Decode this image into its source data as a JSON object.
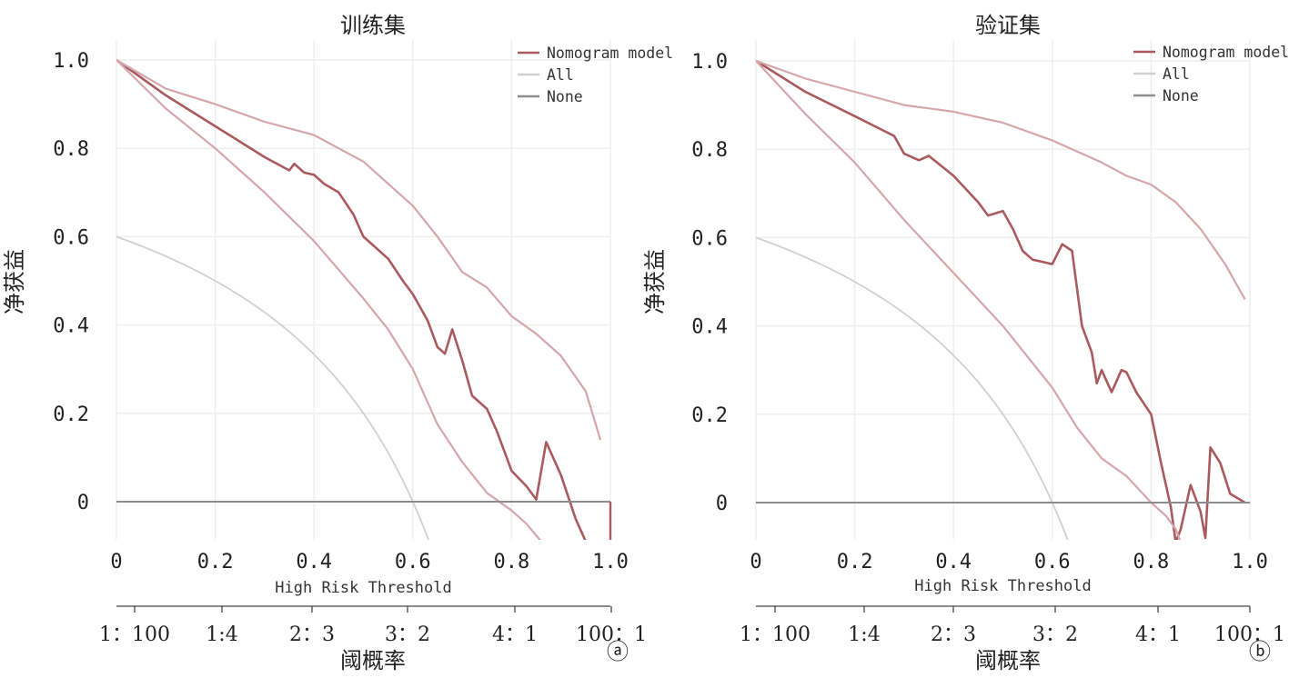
{
  "colors": {
    "model": "#a85a5e",
    "ci": "#d4a6aa",
    "all": "#d0d0d0",
    "none": "#8c8c8c"
  },
  "chart_data": [
    {
      "panel_id": "panel-a",
      "type": "line",
      "title": "训练集",
      "xlabel": "High Risk Threshold",
      "ylabel": "净获益",
      "xlim": [
        0,
        1
      ],
      "ylim": [
        -0.09,
        1.0
      ],
      "x_ticks": [
        "0",
        "0.2",
        "0.4",
        "0.6",
        "0.8",
        "1.0"
      ],
      "y_ticks": [
        "1.0",
        "0.8",
        "0.6",
        "0.4",
        "0.2",
        "0"
      ],
      "cost_benefit_label": "阈概率",
      "cost_benefit_ticks": [
        "1：100",
        "1:4",
        "2：3",
        "3：2",
        "4：1",
        "100：1"
      ],
      "panel_tag": "ⓐ",
      "legend": [
        "Nomogram model",
        "All",
        "None"
      ],
      "prevalence": 0.6,
      "series": [
        {
          "name": "Nomogram model",
          "role": "model",
          "points": [
            [
              0,
              1.0
            ],
            [
              0.05,
              0.96
            ],
            [
              0.1,
              0.92
            ],
            [
              0.15,
              0.885
            ],
            [
              0.2,
              0.85
            ],
            [
              0.25,
              0.815
            ],
            [
              0.3,
              0.78
            ],
            [
              0.35,
              0.75
            ],
            [
              0.36,
              0.765
            ],
            [
              0.38,
              0.745
            ],
            [
              0.4,
              0.74
            ],
            [
              0.42,
              0.72
            ],
            [
              0.45,
              0.7
            ],
            [
              0.48,
              0.65
            ],
            [
              0.5,
              0.6
            ],
            [
              0.55,
              0.55
            ],
            [
              0.58,
              0.5
            ],
            [
              0.6,
              0.47
            ],
            [
              0.63,
              0.41
            ],
            [
              0.65,
              0.35
            ],
            [
              0.665,
              0.335
            ],
            [
              0.68,
              0.39
            ],
            [
              0.7,
              0.32
            ],
            [
              0.72,
              0.24
            ],
            [
              0.75,
              0.21
            ],
            [
              0.77,
              0.16
            ],
            [
              0.8,
              0.07
            ],
            [
              0.83,
              0.035
            ],
            [
              0.85,
              0.005
            ],
            [
              0.87,
              0.135
            ],
            [
              0.9,
              0.06
            ],
            [
              0.93,
              -0.04
            ],
            [
              0.95,
              -0.09
            ]
          ]
        },
        {
          "name": "upper CI",
          "role": "ci",
          "points": [
            [
              0,
              1.0
            ],
            [
              0.1,
              0.935
            ],
            [
              0.2,
              0.9
            ],
            [
              0.3,
              0.86
            ],
            [
              0.4,
              0.83
            ],
            [
              0.5,
              0.77
            ],
            [
              0.6,
              0.67
            ],
            [
              0.65,
              0.6
            ],
            [
              0.7,
              0.52
            ],
            [
              0.75,
              0.485
            ],
            [
              0.8,
              0.42
            ],
            [
              0.85,
              0.38
            ],
            [
              0.9,
              0.33
            ],
            [
              0.95,
              0.25
            ],
            [
              0.98,
              0.14
            ]
          ]
        },
        {
          "name": "lower CI",
          "role": "ci",
          "points": [
            [
              0,
              1.0
            ],
            [
              0.1,
              0.89
            ],
            [
              0.2,
              0.8
            ],
            [
              0.3,
              0.7
            ],
            [
              0.4,
              0.59
            ],
            [
              0.5,
              0.46
            ],
            [
              0.55,
              0.39
            ],
            [
              0.6,
              0.3
            ],
            [
              0.65,
              0.175
            ],
            [
              0.7,
              0.09
            ],
            [
              0.75,
              0.02
            ],
            [
              0.8,
              -0.02
            ],
            [
              0.83,
              -0.05
            ],
            [
              0.86,
              -0.09
            ]
          ]
        },
        {
          "name": "All",
          "role": "all",
          "points": "formula"
        },
        {
          "name": "None",
          "role": "none",
          "points": [
            [
              0,
              0
            ],
            [
              1,
              0
            ]
          ]
        }
      ]
    },
    {
      "panel_id": "panel-b",
      "type": "line",
      "title": "验证集",
      "xlabel": "High Risk Threshold",
      "ylabel": "净获益",
      "xlim": [
        0,
        1
      ],
      "ylim": [
        -0.09,
        1.0
      ],
      "x_ticks": [
        "0",
        "0.2",
        "0.4",
        "0.6",
        "0.8",
        "1.0"
      ],
      "y_ticks": [
        "1.0",
        "0.8",
        "0.6",
        "0.4",
        "0.2",
        "0"
      ],
      "cost_benefit_label": "阈概率",
      "cost_benefit_ticks": [
        "1：100",
        "1:4",
        "2：3",
        "3：2",
        "4：1",
        "100：1"
      ],
      "panel_tag": "ⓑ",
      "legend": [
        "Nomogram model",
        "All",
        "None"
      ],
      "prevalence": 0.6,
      "series": [
        {
          "name": "Nomogram model",
          "role": "model",
          "points": [
            [
              0,
              1.0
            ],
            [
              0.1,
              0.93
            ],
            [
              0.2,
              0.875
            ],
            [
              0.28,
              0.83
            ],
            [
              0.3,
              0.79
            ],
            [
              0.33,
              0.775
            ],
            [
              0.35,
              0.785
            ],
            [
              0.4,
              0.74
            ],
            [
              0.45,
              0.68
            ],
            [
              0.47,
              0.65
            ],
            [
              0.5,
              0.66
            ],
            [
              0.52,
              0.62
            ],
            [
              0.54,
              0.57
            ],
            [
              0.56,
              0.55
            ],
            [
              0.58,
              0.545
            ],
            [
              0.6,
              0.54
            ],
            [
              0.62,
              0.585
            ],
            [
              0.64,
              0.57
            ],
            [
              0.66,
              0.4
            ],
            [
              0.68,
              0.34
            ],
            [
              0.69,
              0.27
            ],
            [
              0.7,
              0.3
            ],
            [
              0.72,
              0.25
            ],
            [
              0.74,
              0.3
            ],
            [
              0.75,
              0.295
            ],
            [
              0.77,
              0.25
            ],
            [
              0.8,
              0.2
            ],
            [
              0.82,
              0.09
            ],
            [
              0.84,
              -0.01
            ],
            [
              0.85,
              -0.09
            ],
            [
              0.86,
              -0.06
            ],
            [
              0.87,
              -0.01
            ],
            [
              0.88,
              0.04
            ],
            [
              0.9,
              -0.02
            ],
            [
              0.91,
              -0.08
            ],
            [
              0.92,
              0.125
            ],
            [
              0.94,
              0.09
            ],
            [
              0.96,
              0.02
            ],
            [
              0.99,
              0.0
            ]
          ]
        },
        {
          "name": "upper CI",
          "role": "ci",
          "points": [
            [
              0,
              1.0
            ],
            [
              0.1,
              0.96
            ],
            [
              0.2,
              0.93
            ],
            [
              0.3,
              0.9
            ],
            [
              0.4,
              0.885
            ],
            [
              0.5,
              0.86
            ],
            [
              0.6,
              0.82
            ],
            [
              0.7,
              0.77
            ],
            [
              0.75,
              0.74
            ],
            [
              0.8,
              0.72
            ],
            [
              0.85,
              0.68
            ],
            [
              0.9,
              0.62
            ],
            [
              0.95,
              0.54
            ],
            [
              0.99,
              0.46
            ]
          ]
        },
        {
          "name": "lower CI",
          "role": "ci",
          "points": [
            [
              0,
              1.0
            ],
            [
              0.1,
              0.88
            ],
            [
              0.2,
              0.77
            ],
            [
              0.3,
              0.64
            ],
            [
              0.4,
              0.52
            ],
            [
              0.5,
              0.4
            ],
            [
              0.6,
              0.26
            ],
            [
              0.65,
              0.17
            ],
            [
              0.7,
              0.1
            ],
            [
              0.75,
              0.06
            ],
            [
              0.8,
              0.0
            ],
            [
              0.83,
              -0.03
            ],
            [
              0.85,
              -0.06
            ],
            [
              0.86,
              -0.09
            ]
          ]
        },
        {
          "name": "All",
          "role": "all",
          "points": "formula"
        },
        {
          "name": "None",
          "role": "none",
          "points": [
            [
              0,
              0
            ],
            [
              1,
              0
            ]
          ]
        }
      ]
    }
  ]
}
